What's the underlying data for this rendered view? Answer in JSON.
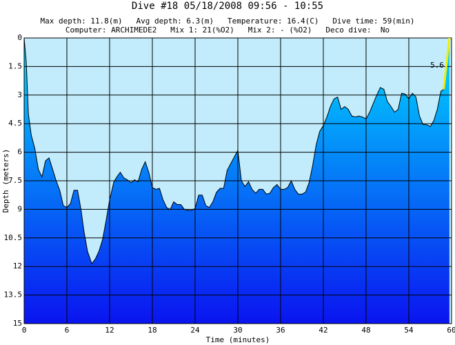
{
  "chart_data": {
    "type": "line",
    "title": "Dive #18  05/18/2008  09:56 - 10:55",
    "subtitle": [
      "Max depth: 11.8(m)   Avg depth: 6.3(m)   Temperature: 16.4(C)   Dive time: 59(min)",
      "Computer: ARCHIMEDE2   Mix 1: 21(%O2)   Mix 2: - (%O2)   Deco dive:  No"
    ],
    "x_label": "Time (minutes)",
    "y_label": "Depth (meters)",
    "annotation": "5.6",
    "xlim": [
      0,
      60
    ],
    "xticks": [
      0,
      6,
      12,
      18,
      24,
      30,
      36,
      42,
      48,
      54,
      60
    ],
    "ylim": [
      15,
      0
    ],
    "yticks": [
      0,
      1.5,
      3,
      4.5,
      6,
      7.5,
      9,
      10.5,
      12,
      13.5,
      15
    ],
    "grid": true,
    "series": [
      {
        "name": "profile",
        "color": "#000000",
        "x": [
          0,
          0.3,
          0.6,
          1.0,
          1.5,
          2.0,
          2.5,
          3.0,
          3.5,
          4.0,
          4.5,
          5.0,
          5.5,
          6.0,
          6.5,
          7.0,
          7.5,
          8.0,
          8.4,
          8.9,
          9.5,
          10.0,
          10.5,
          11.0,
          11.5,
          12.0,
          12.6,
          13.1,
          13.5,
          14.0,
          14.5,
          15.0,
          15.5,
          16.0,
          16.5,
          17.0,
          17.5,
          18.0,
          18.5,
          19.0,
          19.5,
          20.0,
          20.5,
          21.0,
          21.5,
          22.0,
          22.5,
          23.0,
          23.5,
          24.0,
          24.5,
          25.0,
          25.5,
          26.0,
          26.5,
          27.0,
          27.5,
          28.0,
          28.5,
          29.0,
          29.5,
          30.0,
          30.5,
          31.0,
          31.5,
          32.0,
          32.5,
          33.0,
          33.5,
          34.0,
          34.5,
          35.0,
          35.5,
          36.0,
          36.5,
          37.0,
          37.5,
          38.0,
          38.5,
          39.0,
          39.5,
          40.0,
          40.5,
          41.0,
          41.5,
          42.0,
          42.5,
          43.0,
          43.5,
          44.0,
          44.5,
          45.0,
          45.5,
          46.0,
          46.5,
          47.0,
          47.5,
          48.0,
          48.5,
          49.0,
          49.5,
          50.0,
          50.5,
          51.0,
          51.5,
          52.0,
          52.5,
          53.0,
          53.5,
          54.0,
          54.5,
          55.0,
          55.5,
          56.0,
          56.5,
          57.0,
          57.5,
          58.0,
          58.5,
          58.9
        ],
        "values": [
          0,
          1.27,
          4.0,
          5.1,
          5.8,
          6.9,
          7.3,
          6.45,
          6.3,
          6.9,
          7.5,
          8.0,
          8.8,
          8.9,
          8.7,
          8.0,
          8.0,
          9.05,
          10.15,
          11.2,
          11.85,
          11.6,
          11.2,
          10.6,
          9.6,
          8.5,
          7.55,
          7.25,
          7.05,
          7.35,
          7.45,
          7.6,
          7.45,
          7.55,
          6.9,
          6.5,
          7.05,
          7.85,
          7.95,
          7.9,
          8.5,
          8.9,
          9.0,
          8.6,
          8.75,
          8.75,
          9.0,
          9.05,
          9.05,
          8.95,
          8.25,
          8.25,
          8.8,
          8.9,
          8.6,
          8.1,
          7.9,
          7.9,
          6.95,
          6.6,
          6.25,
          5.9,
          7.5,
          7.8,
          7.55,
          7.95,
          8.15,
          7.95,
          7.95,
          8.2,
          8.15,
          7.85,
          7.7,
          7.95,
          7.95,
          7.85,
          7.5,
          7.95,
          8.2,
          8.2,
          8.1,
          7.6,
          6.7,
          5.6,
          4.9,
          4.6,
          4.15,
          3.6,
          3.2,
          3.1,
          3.75,
          3.6,
          3.75,
          4.1,
          4.15,
          4.1,
          4.15,
          4.25,
          3.9,
          3.45,
          3.0,
          2.6,
          2.7,
          3.35,
          3.6,
          3.9,
          3.75,
          2.9,
          2.95,
          3.2,
          2.9,
          3.1,
          4.1,
          4.55,
          4.55,
          4.65,
          4.35,
          3.75,
          2.8,
          2.7
        ]
      },
      {
        "name": "ascent",
        "color": "#f0f000",
        "x": [
          58.9,
          59.7
        ],
        "values": [
          2.7,
          0
        ]
      }
    ]
  }
}
